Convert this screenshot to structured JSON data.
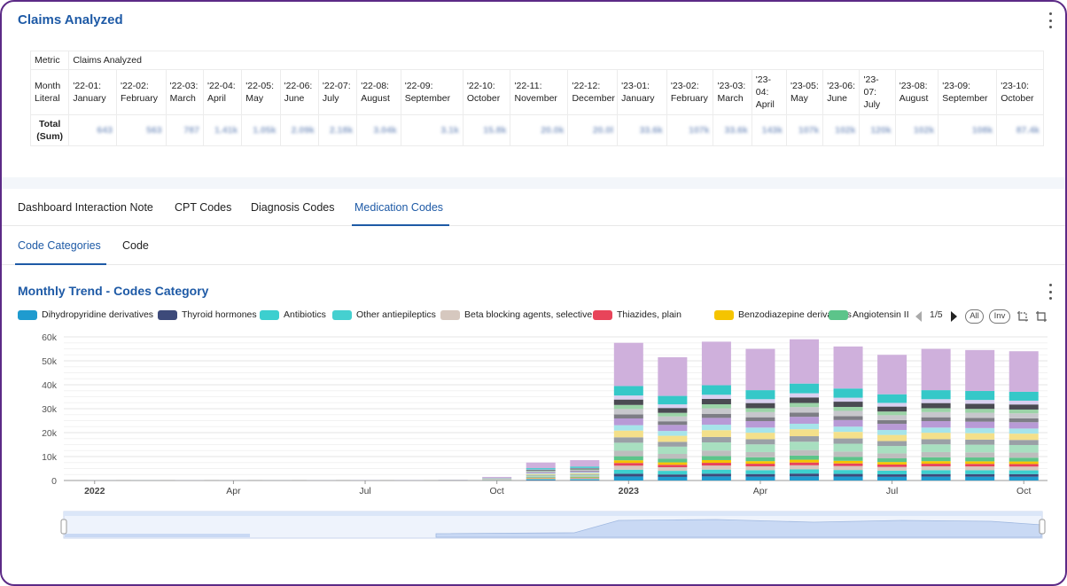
{
  "claims": {
    "title": "Claims Analyzed",
    "metric_label": "Metric",
    "metric_value": "Claims Analyzed",
    "month_label": "Month Literal",
    "total_label": "Total (Sum)",
    "months": [
      "'22-01: January",
      "'22-02: February",
      "'22-03: March",
      "'22-04: April",
      "'22-05: May",
      "'22-06: June",
      "'22-07: July",
      "'22-08: August",
      "'22-09: September",
      "'22-10: October",
      "'22-11: November",
      "'22-12: December",
      "'23-01: January",
      "'23-02: February",
      "'23-03: March",
      "'23-04: April",
      "'23-05: May",
      "'23-06: June",
      "'23-07: July",
      "'23-08: August",
      "'23-09: September",
      "'23-10: October"
    ],
    "totals": [
      "643",
      "563",
      "787",
      "1.41k",
      "1.05k",
      "2.09k",
      "2.18k",
      "3.04k",
      "3.1k",
      "15.8k",
      "20.0k",
      "20.0l",
      "33.6k",
      "107k",
      "33.6k",
      "143k",
      "107k",
      "102k",
      "120k",
      "102k",
      "108k",
      "87.4k"
    ]
  },
  "tabs": [
    "Dashboard Interaction Note",
    "CPT Codes",
    "Diagnosis Codes",
    "Medication Codes"
  ],
  "active_tab": 3,
  "subtabs": [
    "Code Categories",
    "Code"
  ],
  "active_subtab": 0,
  "trend": {
    "title": "Monthly Trend - Codes Category",
    "legend": [
      {
        "name": "Dihydropyridine derivatives",
        "color": "#1f9bcf"
      },
      {
        "name": "Thyroid hormones",
        "color": "#3d4a7a"
      },
      {
        "name": "Antibiotics",
        "color": "#3ccfcf"
      },
      {
        "name": "Other antiepileptics",
        "color": "#45d0d0"
      },
      {
        "name": "Beta blocking agents, selective",
        "color": "#d6c8bf"
      },
      {
        "name": "Thiazides, plain",
        "color": "#e8445a"
      },
      {
        "name": "Benzodiazepine derivatives",
        "color": "#f5c400"
      },
      {
        "name": "Angiotensin II",
        "color": "#5cc48a"
      }
    ],
    "page": "1/5",
    "all_label": "All",
    "inv_label": "Inv"
  },
  "chart_data": {
    "type": "bar",
    "stacked": true,
    "y_ticks": [
      "0",
      "10k",
      "20k",
      "30k",
      "40k",
      "50k",
      "60k"
    ],
    "ylim": [
      0,
      60000
    ],
    "x_tick_labels": [
      "2022",
      "Apr",
      "Jul",
      "Oct",
      "2023",
      "Apr",
      "Jul",
      "Oct"
    ],
    "categories": [
      "2022-01",
      "2022-02",
      "2022-03",
      "2022-04",
      "2022-05",
      "2022-06",
      "2022-07",
      "2022-08",
      "2022-09",
      "2022-10",
      "2022-11",
      "2022-12",
      "2023-01",
      "2023-02",
      "2023-03",
      "2023-04",
      "2023-05",
      "2023-06",
      "2023-07",
      "2023-08",
      "2023-09",
      "2023-10"
    ],
    "totals": [
      100,
      80,
      150,
      100,
      100,
      150,
      200,
      200,
      300,
      1500,
      7500,
      8500,
      57500,
      51500,
      58000,
      55000,
      59000,
      56000,
      52500,
      55000,
      54500,
      54000
    ],
    "grid": true,
    "legend_position": "top-left"
  },
  "icons": [
    "more-vertical-icon",
    "chevron-left-icon",
    "chevron-right-icon",
    "select-rectangle-icon",
    "select-lasso-icon"
  ]
}
